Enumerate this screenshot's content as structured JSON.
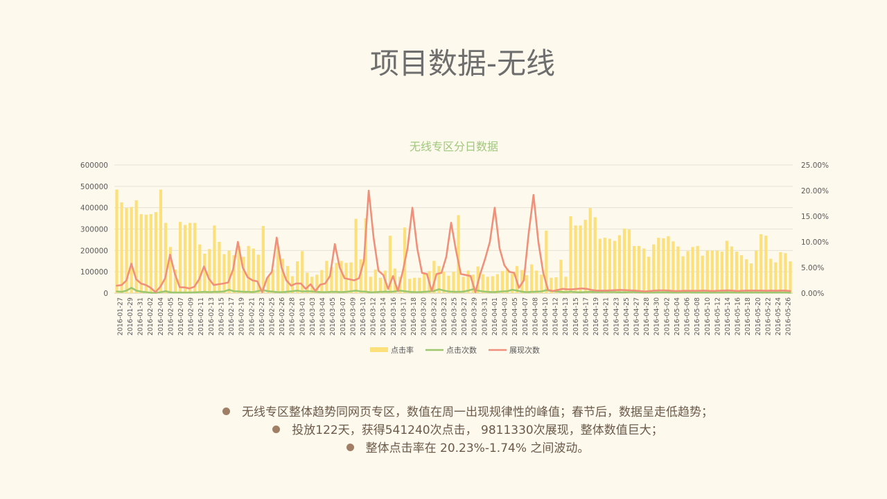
{
  "slide": {
    "title": "项目数据-无线"
  },
  "bullets": [
    "无线专区整体趋势同网页专区，数值在周一出现规律性的峰值；春节后，数据呈走低趋势；",
    "投放122天，获得541240次点击， 9811330次展现，整体数值巨大；",
    "整体点击率在 20.23%-1.74% 之间波动。"
  ],
  "colors": {
    "bar": "#fbe07c",
    "click_line": "#9dc76f",
    "impression_line": "#f0907a",
    "grid": "#e5e2d6",
    "axis_text": "#595959"
  },
  "chart_data": {
    "type": "bar",
    "title": "无线专区分日数据",
    "left_axis": {
      "ylim": [
        0,
        600000
      ],
      "ticks": [
        "0",
        "100000",
        "200000",
        "300000",
        "400000",
        "500000",
        "600000"
      ]
    },
    "right_axis": {
      "ylim": [
        0,
        25
      ],
      "unit": "%",
      "ticks": [
        "0.00%",
        "5.00%",
        "10.00%",
        "15.00%",
        "20.00%",
        "25.00%"
      ]
    },
    "x_tick_labels": [
      "2016-01-27",
      "2016-01-29",
      "2016-01-31",
      "2016-02-02",
      "2016-02-04",
      "2016-02-05",
      "2016-02-07",
      "2016-02-09",
      "2016-02-11",
      "2016-02-13",
      "2016-02-15",
      "2016-02-17",
      "2016-02-19",
      "2016-02-21",
      "2016-02-23",
      "2016-02-25",
      "2016-02-26",
      "2016-02-28",
      "2016-03-01",
      "2016-03-03",
      "2016-03-04",
      "2016-03-05",
      "2016-03-07",
      "2016-03-09",
      "2016-03-10",
      "2016-03-12",
      "2016-03-14",
      "2016-03-16",
      "2016-03-17",
      "2016-03-18",
      "2016-03-20",
      "2016-03-22",
      "2016-03-23",
      "2016-03-25",
      "2016-03-27",
      "2016-03-29",
      "2016-03-31",
      "2016-04-01",
      "2016-04-03",
      "2016-04-05",
      "2016-04-07",
      "2016-04-08",
      "2016-04-10",
      "2016-04-12",
      "2016-04-13",
      "2016-04-15",
      "2016-04-17",
      "2016-04-19",
      "2016-04-21",
      "2016-04-23",
      "2016-04-25",
      "2016-04-27",
      "2016-04-28",
      "2016-04-30",
      "2016-05-02",
      "2016-05-04",
      "2016-05-06",
      "2016-05-08",
      "2016-05-10",
      "2016-05-12",
      "2016-05-14",
      "2016-05-16",
      "2016-05-18",
      "2016-05-20",
      "2016-05-22",
      "2016-05-24",
      "2016-05-26"
    ],
    "legend": [
      "点击率",
      "点击次数",
      "展现次数"
    ],
    "legend_position": "bottom",
    "grid": true,
    "series": [
      {
        "name": "点击率",
        "kind": "bar",
        "axis": "right",
        "values": [
          20.2,
          17.7,
          16.6,
          16.8,
          18.1,
          15.4,
          15.3,
          15.4,
          15.8,
          20.2,
          13.7,
          9,
          4.6,
          13.9,
          13.3,
          13.7,
          13.7,
          9.5,
          7.7,
          8.6,
          13.2,
          10,
          7.6,
          8.3,
          7.4,
          9.2,
          7.1,
          9.2,
          8.7,
          7.5,
          13.1,
          3.2,
          4.6,
          9,
          6.7,
          5.3,
          3.3,
          6.2,
          8.2,
          4,
          3.2,
          3.6,
          4.5,
          6.3,
          5.1,
          5.9,
          6.3,
          5.9,
          6,
          14.5,
          6.6,
          14.6,
          3.2,
          4.6,
          3,
          4.4,
          11.2,
          4.8,
          3.2,
          12.8,
          2.8,
          3,
          3,
          3.9,
          4.3,
          6.3,
          5.3,
          4.2,
          3.4,
          4.2,
          15.2,
          3.2,
          4.4,
          3.6,
          5.2,
          3.7,
          3.2,
          3.3,
          3.7,
          4.3,
          4.7,
          3.8,
          5.3,
          4.5,
          3.5,
          5.6,
          4.4,
          3.6,
          12.2,
          3,
          3.1,
          6.5,
          3.2,
          15,
          13.2,
          13.2,
          14.3,
          16.6,
          14.8,
          10.6,
          10.8,
          10.6,
          10.2,
          11.3,
          12.6,
          12.4,
          9.2,
          9.2,
          8.7,
          7.1,
          9.5,
          10.8,
          10.7,
          11.1,
          10.1,
          9.1,
          7.2,
          8.2,
          9,
          9.2,
          7.3,
          8.3,
          8.3,
          8.3,
          8.1,
          10.2,
          9.1,
          8.1,
          7.4,
          6.6,
          5.8,
          8.3,
          11.5,
          11.2,
          6.7,
          6,
          8,
          7.8,
          6.2
        ]
      },
      {
        "name": "点击次数",
        "kind": "line",
        "axis": "left",
        "values": [
          8000,
          6000,
          12000,
          25000,
          12000,
          7000,
          5000,
          2000,
          1500,
          5000,
          9000,
          4000,
          3000,
          3000,
          3000,
          3000,
          4000,
          5000,
          6000,
          5000,
          6000,
          6000,
          8000,
          16000,
          9000,
          8000,
          6000,
          6000,
          5000,
          10000,
          14000,
          9000,
          7000,
          5000,
          5000,
          7000,
          9000,
          12000,
          8000,
          9000,
          8000,
          6000,
          5000,
          5000,
          6000,
          6000,
          5000,
          6000,
          9000,
          12000,
          8000,
          7000,
          4000,
          5000,
          6000,
          7000,
          6000,
          8000,
          12000,
          9000,
          6000,
          5000,
          5000,
          6000,
          8000,
          10000,
          18000,
          12000,
          8000,
          6000,
          6000,
          7000,
          12000,
          18000,
          12000,
          8000,
          6000,
          5000,
          6000,
          8000,
          9000,
          16000,
          12000,
          7000,
          5000,
          6000,
          7000,
          8000,
          14000,
          10000,
          8000,
          6000,
          5000,
          7000,
          5000,
          4000,
          5000,
          6000,
          5000,
          5000,
          6000,
          5000,
          5000,
          4000,
          4000,
          5000,
          5000,
          4000,
          3000,
          3000,
          3000,
          4000,
          4000,
          4000,
          3000,
          3000,
          4000,
          4000,
          3000,
          3000,
          3000,
          3000,
          3000,
          3000,
          3000,
          4000,
          3000,
          3000,
          3000,
          3000,
          3000,
          3000,
          3000,
          3000,
          3000,
          3000,
          3000,
          3000,
          2000
        ]
      },
      {
        "name": "展现次数",
        "kind": "line",
        "axis": "left",
        "values": [
          35000,
          38000,
          60000,
          138000,
          65000,
          45000,
          38000,
          25000,
          5000,
          30000,
          70000,
          180000,
          90000,
          28000,
          27000,
          22000,
          30000,
          65000,
          125000,
          68000,
          38000,
          42000,
          45000,
          50000,
          110000,
          240000,
          120000,
          75000,
          60000,
          55000,
          5000,
          70000,
          100000,
          260000,
          120000,
          60000,
          35000,
          45000,
          45000,
          20000,
          42000,
          10000,
          40000,
          45000,
          80000,
          230000,
          120000,
          70000,
          65000,
          60000,
          70000,
          150000,
          480000,
          260000,
          105000,
          85000,
          20000,
          80000,
          10000,
          100000,
          210000,
          400000,
          210000,
          95000,
          90000,
          10000,
          90000,
          95000,
          170000,
          330000,
          200000,
          90000,
          85000,
          80000,
          5000,
          90000,
          160000,
          240000,
          400000,
          210000,
          130000,
          100000,
          95000,
          25000,
          60000,
          280000,
          460000,
          240000,
          95000,
          15000,
          10000,
          15000,
          20000,
          18000,
          18000,
          20000,
          22000,
          20000,
          15000,
          12000,
          12000,
          12000,
          13000,
          14000,
          15000,
          14000,
          13000,
          12000,
          10000,
          8000,
          10000,
          12000,
          13000,
          13000,
          12000,
          10000,
          10000,
          11000,
          11000,
          11000,
          11000,
          12000,
          11000,
          10000,
          11000,
          12000,
          13000,
          12000,
          10000,
          11000,
          12000,
          12000,
          12000,
          12000,
          11000,
          12000,
          11000,
          12000,
          12000,
          10000
        ]
      }
    ]
  }
}
